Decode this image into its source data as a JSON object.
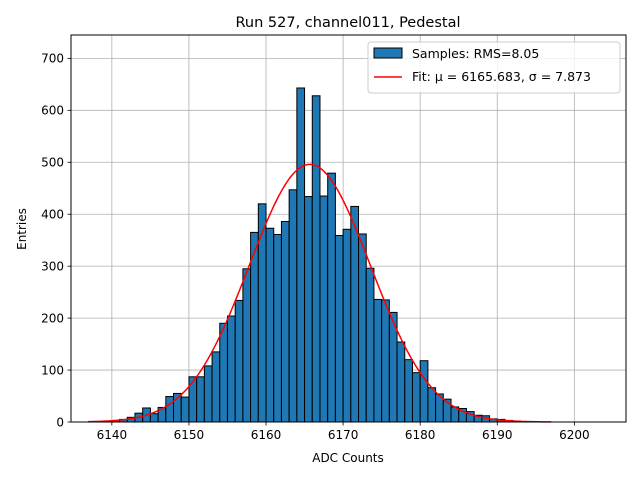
{
  "chart_data": {
    "type": "bar",
    "title": "Run 527, channel011, Pedestal",
    "xlabel": "ADC Counts",
    "ylabel": "Entries",
    "xlim": [
      6134.7,
      6206.7
    ],
    "ylim": [
      0,
      745
    ],
    "xticks": [
      6140,
      6150,
      6160,
      6170,
      6180,
      6190,
      6200
    ],
    "yticks": [
      0,
      100,
      200,
      300,
      400,
      500,
      600,
      700
    ],
    "grid": true,
    "legend_position": "top-right",
    "bin_width": 1,
    "bins": {
      "x": [
        6137,
        6138,
        6139,
        6140,
        6141,
        6142,
        6143,
        6144,
        6145,
        6146,
        6147,
        6148,
        6149,
        6150,
        6151,
        6152,
        6153,
        6154,
        6155,
        6156,
        6157,
        6158,
        6159,
        6160,
        6161,
        6162,
        6163,
        6164,
        6165,
        6166,
        6167,
        6168,
        6169,
        6170,
        6171,
        6172,
        6173,
        6174,
        6175,
        6176,
        6177,
        6178,
        6179,
        6180,
        6181,
        6182,
        6183,
        6184,
        6185,
        6186,
        6187,
        6188,
        6189,
        6190,
        6191,
        6192,
        6193,
        6194,
        6195,
        6196
      ],
      "values": [
        1,
        1,
        2,
        3,
        5,
        9,
        17,
        27,
        16,
        28,
        49,
        55,
        48,
        87,
        87,
        108,
        135,
        190,
        204,
        234,
        295,
        365,
        420,
        373,
        361,
        386,
        447,
        643,
        434,
        628,
        435,
        479,
        359,
        371,
        415,
        362,
        296,
        236,
        235,
        211,
        154,
        120,
        95,
        118,
        66,
        54,
        44,
        29,
        26,
        20,
        13,
        12,
        6,
        5,
        3,
        2,
        1,
        1,
        0,
        0
      ]
    },
    "series": [
      {
        "name": "Samples: RMS=8.05",
        "kind": "histogram",
        "color": "#1f77b4",
        "edgecolor": "#000000"
      },
      {
        "name": "Fit: μ = 6165.683, σ = 7.873",
        "kind": "gaussian",
        "color": "#ff0000",
        "mu": 6165.683,
        "sigma": 7.873,
        "amplitude": 496,
        "x_range": [
          6137,
          6197
        ]
      }
    ]
  }
}
